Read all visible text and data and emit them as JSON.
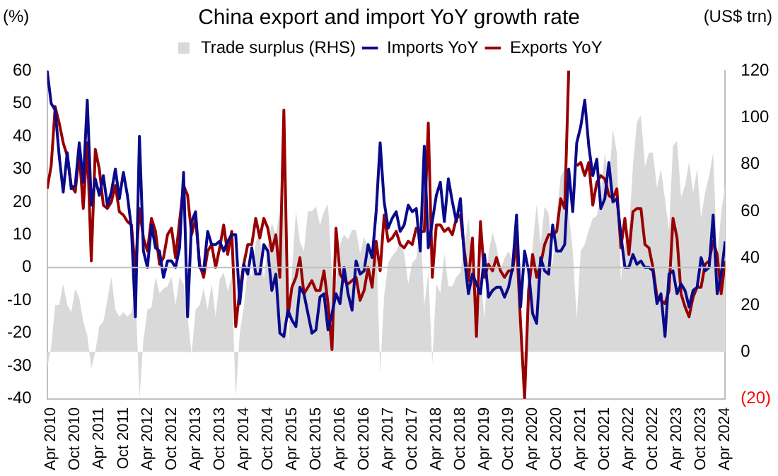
{
  "chart_data": {
    "type": "line",
    "title": "China export and import YoY growth rate",
    "ylabel": "(%)",
    "y2label": "(US$ trn)",
    "x": [
      "2010-03",
      "2010-04",
      "2010-05",
      "2010-06",
      "2010-07",
      "2010-08",
      "2010-09",
      "2010-10",
      "2010-11",
      "2010-12",
      "2011-01",
      "2011-02",
      "2011-03",
      "2011-04",
      "2011-05",
      "2011-06",
      "2011-07",
      "2011-08",
      "2011-09",
      "2011-10",
      "2011-11",
      "2011-12",
      "2012-01",
      "2012-02",
      "2012-03",
      "2012-04",
      "2012-05",
      "2012-06",
      "2012-07",
      "2012-08",
      "2012-09",
      "2012-10",
      "2012-11",
      "2012-12",
      "2013-01",
      "2013-02",
      "2013-03",
      "2013-04",
      "2013-05",
      "2013-06",
      "2013-07",
      "2013-08",
      "2013-09",
      "2013-10",
      "2013-11",
      "2013-12",
      "2014-01",
      "2014-02",
      "2014-03",
      "2014-04",
      "2014-05",
      "2014-06",
      "2014-07",
      "2014-08",
      "2014-09",
      "2014-10",
      "2014-11",
      "2014-12",
      "2015-01",
      "2015-02",
      "2015-03",
      "2015-04",
      "2015-05",
      "2015-06",
      "2015-07",
      "2015-08",
      "2015-09",
      "2015-10",
      "2015-11",
      "2015-12",
      "2016-01",
      "2016-02",
      "2016-03",
      "2016-04",
      "2016-05",
      "2016-06",
      "2016-07",
      "2016-08",
      "2016-09",
      "2016-10",
      "2016-11",
      "2016-12",
      "2017-01",
      "2017-02",
      "2017-03",
      "2017-04",
      "2017-05",
      "2017-06",
      "2017-07",
      "2017-08",
      "2017-09",
      "2017-10",
      "2017-11",
      "2017-12",
      "2018-01",
      "2018-02",
      "2018-03",
      "2018-04",
      "2018-05",
      "2018-06",
      "2018-07",
      "2018-08",
      "2018-09",
      "2018-10",
      "2018-11",
      "2018-12",
      "2019-01",
      "2019-02",
      "2019-03",
      "2019-04",
      "2019-05",
      "2019-06",
      "2019-07",
      "2019-08",
      "2019-09",
      "2019-10",
      "2019-11",
      "2019-12",
      "2020-01",
      "2020-02",
      "2020-03",
      "2020-04",
      "2020-05",
      "2020-06",
      "2020-07",
      "2020-08",
      "2020-09",
      "2020-10",
      "2020-11",
      "2020-12",
      "2021-01",
      "2021-02",
      "2021-03",
      "2021-04",
      "2021-05",
      "2021-06",
      "2021-07",
      "2021-08",
      "2021-09",
      "2021-10",
      "2021-11",
      "2021-12",
      "2022-01",
      "2022-02",
      "2022-03",
      "2022-04",
      "2022-05",
      "2022-06",
      "2022-07",
      "2022-08",
      "2022-09",
      "2022-10",
      "2022-11",
      "2022-12",
      "2023-01",
      "2023-02",
      "2023-03",
      "2023-04",
      "2023-05",
      "2023-06",
      "2023-07",
      "2023-08",
      "2023-09",
      "2023-10",
      "2023-11",
      "2023-12",
      "2024-01",
      "2024-02",
      "2024-03",
      "2024-04"
    ],
    "series": [
      {
        "name": "Trade surplus (RHS)",
        "type": "area",
        "axis": "y2",
        "color": "#d9d9d9",
        "values": [
          -7,
          2,
          20,
          20,
          29,
          20,
          17,
          27,
          23,
          13,
          7,
          -7,
          0,
          11,
          13,
          22,
          32,
          18,
          15,
          17,
          15,
          17,
          27,
          -20,
          5,
          18,
          19,
          32,
          25,
          27,
          28,
          32,
          20,
          32,
          29,
          15,
          -1,
          18,
          20,
          27,
          18,
          29,
          15,
          31,
          34,
          26,
          32,
          -20,
          8,
          19,
          36,
          32,
          47,
          50,
          31,
          45,
          55,
          50,
          60,
          61,
          3,
          34,
          60,
          47,
          43,
          60,
          60,
          62,
          54,
          60,
          63,
          33,
          30,
          46,
          50,
          48,
          52,
          52,
          42,
          49,
          45,
          41,
          51,
          -9,
          24,
          38,
          41,
          43,
          47,
          42,
          29,
          38,
          40,
          55,
          20,
          34,
          -5,
          29,
          25,
          42,
          28,
          28,
          32,
          34,
          45,
          57,
          39,
          4,
          33,
          14,
          42,
          51,
          45,
          35,
          40,
          43,
          39,
          47,
          20,
          -7,
          20,
          45,
          63,
          46,
          62,
          59,
          37,
          58,
          75,
          78,
          60,
          43,
          14,
          43,
          46,
          52,
          57,
          58,
          67,
          85,
          72,
          95,
          85,
          30,
          47,
          51,
          79,
          98,
          101,
          79,
          85,
          85,
          70,
          78,
          65,
          52,
          88,
          90,
          66,
          71,
          81,
          68,
          78,
          57,
          68,
          75,
          85,
          40,
          59,
          72
        ]
      },
      {
        "name": "Imports YoY",
        "type": "line",
        "color": "#0a0a8c",
        "values": [
          60,
          50,
          48,
          34,
          23,
          35,
          24,
          25,
          38,
          26,
          51,
          19,
          27,
          22,
          28,
          19,
          23,
          30,
          21,
          29,
          22,
          12,
          -15,
          40,
          5,
          0,
          13,
          6,
          5,
          -3,
          2,
          2,
          0,
          6,
          29,
          -15,
          14,
          17,
          0,
          -1,
          11,
          7,
          7,
          8,
          5,
          8,
          10,
          10,
          -11,
          1,
          -2,
          6,
          -2,
          -2,
          7,
          5,
          -7,
          -2,
          -20,
          -21,
          -13,
          -16,
          -18,
          -6,
          -8,
          -14,
          -20,
          -19,
          -9,
          -8,
          -19,
          -14,
          -8,
          -11,
          0,
          -8,
          -13,
          2,
          -2,
          -1,
          7,
          3,
          17,
          38,
          20,
          12,
          15,
          17,
          11,
          13,
          19,
          17,
          18,
          5,
          37,
          6,
          14,
          22,
          26,
          14,
          27,
          20,
          14,
          21,
          3,
          -8,
          -2,
          -5,
          -8,
          4,
          -9,
          -7,
          -6,
          -6,
          -9,
          -6,
          0,
          16,
          -12,
          5,
          -1,
          -14,
          -17,
          3,
          -1,
          -2,
          13,
          5,
          5,
          7,
          30,
          17,
          38,
          43,
          51,
          37,
          28,
          33,
          18,
          21,
          32,
          20,
          21,
          10,
          0,
          0,
          4,
          1,
          2,
          0,
          0,
          -1,
          -11,
          -8,
          -21,
          -2,
          -1,
          -8,
          -5,
          -7,
          -12,
          -7,
          -6,
          3,
          -1,
          0,
          16,
          -8,
          -2,
          8
        ]
      },
      {
        "name": "Exports YoY",
        "type": "line",
        "color": "#990000",
        "values": [
          24,
          31,
          49,
          44,
          38,
          34,
          25,
          23,
          35,
          18,
          38,
          2,
          36,
          30,
          19,
          18,
          20,
          25,
          17,
          16,
          14,
          13,
          -1,
          18,
          9,
          5,
          15,
          11,
          1,
          3,
          10,
          12,
          3,
          14,
          25,
          22,
          10,
          15,
          1,
          -3,
          5,
          7,
          0,
          6,
          13,
          4,
          11,
          -18,
          -7,
          1,
          7,
          7,
          15,
          9,
          15,
          12,
          5,
          10,
          -3,
          48,
          -15,
          -6,
          -3,
          3,
          -8,
          -6,
          -4,
          -7,
          -7,
          -1,
          -11,
          -25,
          12,
          -2,
          -4,
          -5,
          -4,
          -3,
          -10,
          -7,
          0,
          -6,
          8,
          -1,
          16,
          8,
          9,
          11,
          7,
          6,
          8,
          7,
          12,
          11,
          11,
          44,
          -3,
          13,
          13,
          11,
          12,
          10,
          15,
          16,
          5,
          -4,
          9,
          -21,
          14,
          -3,
          1,
          -1,
          3,
          -1,
          -3,
          -1,
          -1,
          8,
          -17,
          -40,
          -7,
          4,
          -3,
          1,
          7,
          10,
          10,
          11,
          21,
          18,
          60,
          null,
          31,
          32,
          28,
          32,
          19,
          26,
          28,
          27,
          22,
          21,
          24,
          6,
          15,
          4,
          17,
          18,
          18,
          7,
          6,
          0,
          -9,
          -10,
          -11,
          -7,
          15,
          9,
          -8,
          -12,
          -15,
          -9,
          -6,
          -6,
          1,
          2,
          8,
          4,
          -8,
          2
        ]
      }
    ],
    "xlim": [
      "2010-03",
      "2024-04"
    ],
    "xticks": [
      {
        "value": "2010-04",
        "label": "Apr 2010"
      },
      {
        "value": "2010-10",
        "label": "Oct 2010"
      },
      {
        "value": "2011-04",
        "label": "Apr 2011"
      },
      {
        "value": "2011-10",
        "label": "Oct 2011"
      },
      {
        "value": "2012-04",
        "label": "Apr 2012"
      },
      {
        "value": "2012-10",
        "label": "Oct 2012"
      },
      {
        "value": "2013-04",
        "label": "Apr 2013"
      },
      {
        "value": "2013-10",
        "label": "Oct 2013"
      },
      {
        "value": "2014-04",
        "label": "Apr 2014"
      },
      {
        "value": "2014-10",
        "label": "Oct 2014"
      },
      {
        "value": "2015-04",
        "label": "Apr 2015"
      },
      {
        "value": "2015-10",
        "label": "Oct 2015"
      },
      {
        "value": "2016-04",
        "label": "Apr 2016"
      },
      {
        "value": "2016-10",
        "label": "Oct 2016"
      },
      {
        "value": "2017-04",
        "label": "Apr 2017"
      },
      {
        "value": "2017-10",
        "label": "Oct 2017"
      },
      {
        "value": "2018-04",
        "label": "Apr 2018"
      },
      {
        "value": "2018-10",
        "label": "Oct 2018"
      },
      {
        "value": "2019-04",
        "label": "Apr 2019"
      },
      {
        "value": "2019-10",
        "label": "Oct 2019"
      },
      {
        "value": "2020-04",
        "label": "Apr 2020"
      },
      {
        "value": "2020-10",
        "label": "Oct 2020"
      },
      {
        "value": "2021-04",
        "label": "Apr 2021"
      },
      {
        "value": "2021-10",
        "label": "Oct 2021"
      },
      {
        "value": "2022-04",
        "label": "Apr 2022"
      },
      {
        "value": "2022-10",
        "label": "Oct 2022"
      },
      {
        "value": "2023-04",
        "label": "Apr 2023"
      },
      {
        "value": "2023-10",
        "label": "Oct 2023"
      },
      {
        "value": "2024-04",
        "label": "Apr 2024"
      }
    ],
    "ylim": [
      -40,
      60
    ],
    "yticks": [
      -40,
      -30,
      -20,
      -10,
      0,
      10,
      20,
      30,
      40,
      50,
      60
    ],
    "y2lim": [
      -20,
      120
    ],
    "y2ticks": [
      {
        "value": -20,
        "label": "(20)"
      },
      0,
      20,
      40,
      60,
      80,
      100,
      120
    ],
    "ref_lines": [
      {
        "axis": "y",
        "value": 0,
        "color": "#bfbfbf"
      }
    ],
    "legend": "top",
    "grid": false,
    "marker": "none",
    "line_style": "solid"
  }
}
